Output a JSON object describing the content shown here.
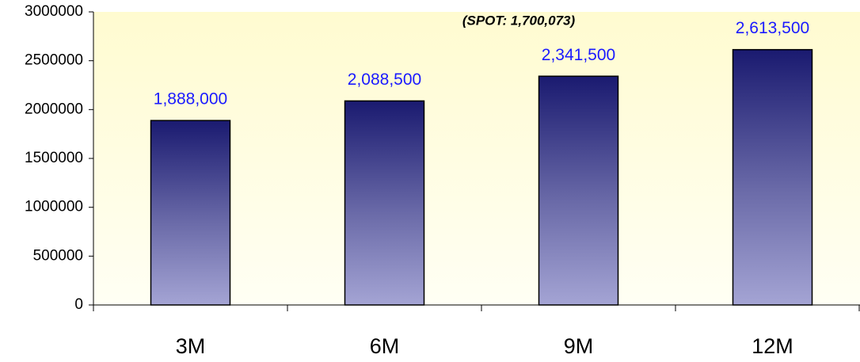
{
  "chart_data": {
    "type": "bar",
    "annotation": "(SPOT: 1,700,073)",
    "categories": [
      "3M",
      "6M",
      "9M",
      "12M"
    ],
    "values": [
      1888000,
      2088500,
      2341500,
      2613500
    ],
    "value_labels": [
      "1,888,000",
      "2,088,500",
      "2,341,500",
      "2,613,500"
    ],
    "color": "#1a1a70",
    "ylim": [
      0,
      3000000
    ],
    "yticks": [
      0,
      500000,
      1000000,
      1500000,
      2000000,
      2500000,
      3000000
    ],
    "grid": false
  }
}
